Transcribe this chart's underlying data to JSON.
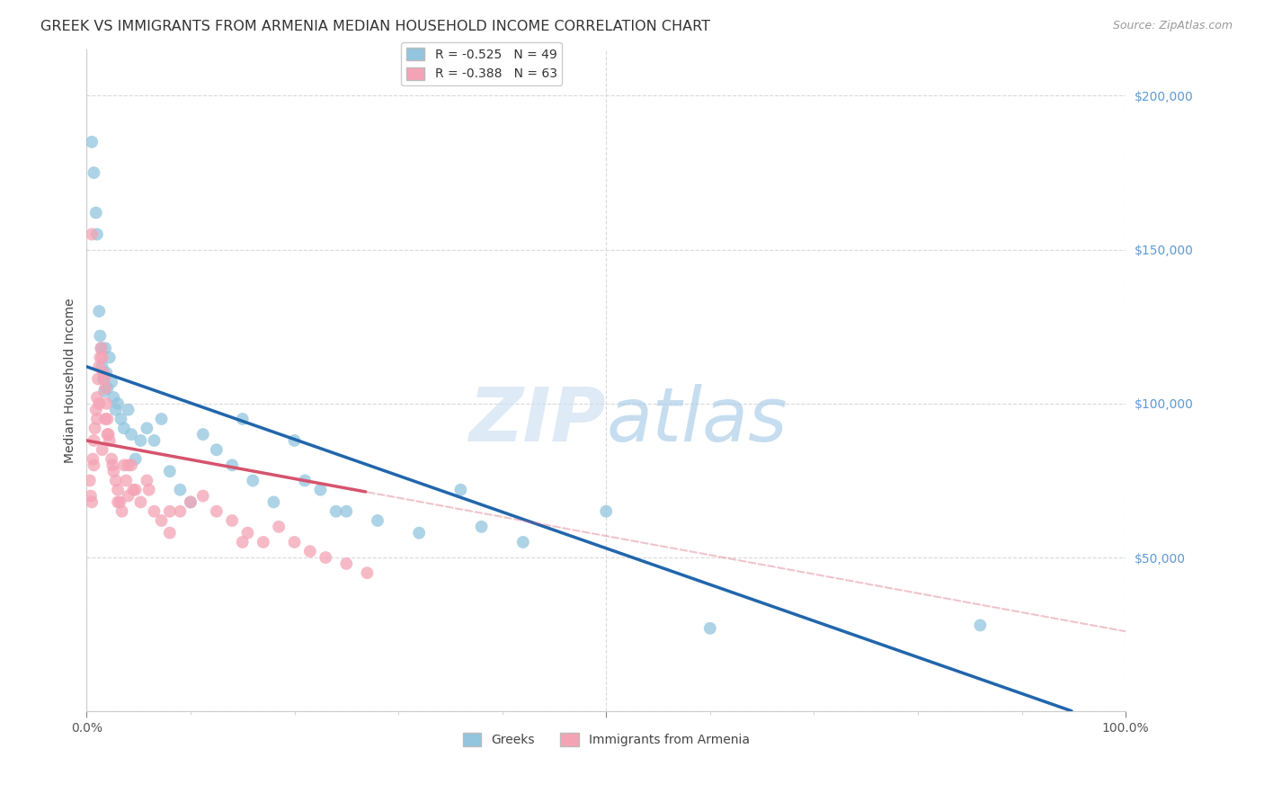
{
  "title": "GREEK VS IMMIGRANTS FROM ARMENIA MEDIAN HOUSEHOLD INCOME CORRELATION CHART",
  "source": "Source: ZipAtlas.com",
  "ylabel": "Median Household Income",
  "xlim": [
    0,
    1.0
  ],
  "ylim": [
    0,
    215000
  ],
  "blue_color": "#92c5de",
  "pink_color": "#f4a3b5",
  "blue_line_color": "#2166ac",
  "pink_line_color": "#d6536d",
  "blue_R": -0.525,
  "blue_N": 49,
  "pink_R": -0.388,
  "pink_N": 63,
  "watermark_zip": "ZIP",
  "watermark_atlas": "atlas",
  "background_color": "#ffffff",
  "grid_color": "#d0d0d0",
  "blue_intercept": 112000,
  "blue_slope": -118000,
  "pink_intercept": 88000,
  "pink_slope": -62000,
  "pink_line_solid_end": 0.27,
  "blue_points_x": [
    0.005,
    0.007,
    0.009,
    0.01,
    0.012,
    0.013,
    0.014,
    0.015,
    0.016,
    0.017,
    0.018,
    0.019,
    0.02,
    0.022,
    0.024,
    0.026,
    0.028,
    0.03,
    0.033,
    0.036,
    0.04,
    0.043,
    0.047,
    0.052,
    0.058,
    0.065,
    0.072,
    0.08,
    0.09,
    0.1,
    0.112,
    0.125,
    0.14,
    0.16,
    0.18,
    0.2,
    0.225,
    0.25,
    0.28,
    0.32,
    0.36,
    0.42,
    0.5,
    0.6,
    0.86,
    0.15,
    0.21,
    0.24,
    0.38
  ],
  "blue_points_y": [
    185000,
    175000,
    162000,
    155000,
    130000,
    122000,
    118000,
    112000,
    108000,
    104000,
    118000,
    110000,
    105000,
    115000,
    107000,
    102000,
    98000,
    100000,
    95000,
    92000,
    98000,
    90000,
    82000,
    88000,
    92000,
    88000,
    95000,
    78000,
    72000,
    68000,
    90000,
    85000,
    80000,
    75000,
    68000,
    88000,
    72000,
    65000,
    62000,
    58000,
    72000,
    55000,
    65000,
    27000,
    28000,
    95000,
    75000,
    65000,
    60000
  ],
  "pink_points_x": [
    0.003,
    0.004,
    0.005,
    0.006,
    0.007,
    0.008,
    0.009,
    0.01,
    0.011,
    0.012,
    0.013,
    0.014,
    0.015,
    0.016,
    0.017,
    0.018,
    0.019,
    0.02,
    0.021,
    0.022,
    0.024,
    0.026,
    0.028,
    0.03,
    0.032,
    0.034,
    0.036,
    0.038,
    0.04,
    0.043,
    0.047,
    0.052,
    0.058,
    0.065,
    0.072,
    0.08,
    0.09,
    0.1,
    0.112,
    0.125,
    0.14,
    0.155,
    0.17,
    0.185,
    0.2,
    0.215,
    0.23,
    0.25,
    0.27,
    0.04,
    0.06,
    0.005,
    0.08,
    0.03,
    0.045,
    0.01,
    0.015,
    0.02,
    0.025,
    0.007,
    0.012,
    0.018,
    0.15
  ],
  "pink_points_y": [
    75000,
    70000,
    68000,
    82000,
    88000,
    92000,
    98000,
    102000,
    108000,
    112000,
    115000,
    118000,
    115000,
    110000,
    108000,
    105000,
    100000,
    95000,
    90000,
    88000,
    82000,
    78000,
    75000,
    72000,
    68000,
    65000,
    80000,
    75000,
    70000,
    80000,
    72000,
    68000,
    75000,
    65000,
    62000,
    58000,
    65000,
    68000,
    70000,
    65000,
    62000,
    58000,
    55000,
    60000,
    55000,
    52000,
    50000,
    48000,
    45000,
    80000,
    72000,
    155000,
    65000,
    68000,
    72000,
    95000,
    85000,
    90000,
    80000,
    80000,
    100000,
    95000,
    55000
  ],
  "yticks_right": [
    50000,
    100000,
    150000,
    200000
  ],
  "yticklabels_right": [
    "$50,000",
    "$100,000",
    "$150,000",
    "$200,000"
  ],
  "title_fontsize": 11.5,
  "source_fontsize": 9,
  "axis_label_fontsize": 10,
  "tick_fontsize": 10,
  "legend_fontsize": 10,
  "watermark_fontsize_zip": 60,
  "watermark_fontsize_atlas": 60
}
